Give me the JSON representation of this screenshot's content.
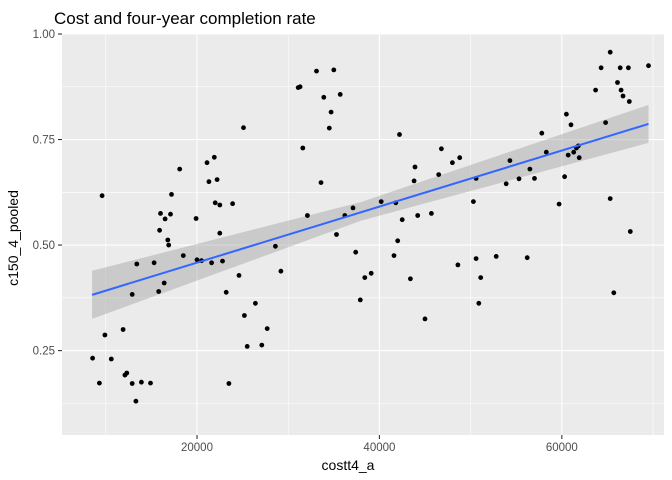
{
  "chart_data": {
    "type": "scatter",
    "title": "Cost and four-year completion rate",
    "xlabel": "costt4_a",
    "ylabel": "c150_4_pooled",
    "xlim": [
      5200,
      71200
    ],
    "ylim": [
      0.05,
      1.0
    ],
    "x_ticks": [
      20000,
      40000,
      60000
    ],
    "x_tick_labels": [
      "20000",
      "40000",
      "60000"
    ],
    "y_ticks": [
      0.25,
      0.5,
      0.75,
      1.0
    ],
    "y_tick_labels": [
      "0.25",
      "0.50",
      "0.75",
      "1.00"
    ],
    "grid": true,
    "background": "#ebebeb",
    "grid_major_color": "#ffffff",
    "point_color": "#000000",
    "smooth": {
      "method": "lm",
      "color": "#3366ff",
      "band_color": "#999999",
      "x": [
        8500,
        69500
      ],
      "y": [
        0.382,
        0.787
      ],
      "ci_lower": [
        0.325,
        0.742
      ],
      "ci_upper": [
        0.439,
        0.832
      ],
      "ci_mid": [
        38000,
        0.58,
        0.558,
        0.602
      ]
    },
    "points": [
      [
        8550,
        0.232
      ],
      [
        9300,
        0.173
      ],
      [
        9600,
        0.617
      ],
      [
        9900,
        0.287
      ],
      [
        10600,
        0.23
      ],
      [
        11900,
        0.3
      ],
      [
        12100,
        0.192
      ],
      [
        12300,
        0.197
      ],
      [
        12900,
        0.172
      ],
      [
        12900,
        0.383
      ],
      [
        13300,
        0.13
      ],
      [
        13400,
        0.455
      ],
      [
        13900,
        0.175
      ],
      [
        14900,
        0.173
      ],
      [
        15300,
        0.458
      ],
      [
        15800,
        0.39
      ],
      [
        15900,
        0.535
      ],
      [
        16000,
        0.575
      ],
      [
        16400,
        0.41
      ],
      [
        16500,
        0.562
      ],
      [
        16800,
        0.512
      ],
      [
        16900,
        0.5
      ],
      [
        17100,
        0.573
      ],
      [
        17200,
        0.62
      ],
      [
        18100,
        0.68
      ],
      [
        18500,
        0.475
      ],
      [
        19900,
        0.563
      ],
      [
        20000,
        0.465
      ],
      [
        20500,
        0.463
      ],
      [
        21100,
        0.695
      ],
      [
        21300,
        0.65
      ],
      [
        21600,
        0.458
      ],
      [
        21900,
        0.708
      ],
      [
        22000,
        0.6
      ],
      [
        22200,
        0.655
      ],
      [
        22500,
        0.528
      ],
      [
        22500,
        0.595
      ],
      [
        22800,
        0.462
      ],
      [
        23200,
        0.388
      ],
      [
        23500,
        0.172
      ],
      [
        23900,
        0.598
      ],
      [
        24600,
        0.428
      ],
      [
        25100,
        0.778
      ],
      [
        25200,
        0.333
      ],
      [
        25500,
        0.26
      ],
      [
        26400,
        0.362
      ],
      [
        27100,
        0.263
      ],
      [
        27700,
        0.302
      ],
      [
        28600,
        0.497
      ],
      [
        29200,
        0.438
      ],
      [
        31100,
        0.873
      ],
      [
        31300,
        0.875
      ],
      [
        31600,
        0.73
      ],
      [
        32100,
        0.57
      ],
      [
        33100,
        0.912
      ],
      [
        33600,
        0.648
      ],
      [
        33900,
        0.85
      ],
      [
        34500,
        0.777
      ],
      [
        34700,
        0.815
      ],
      [
        35000,
        0.915
      ],
      [
        35300,
        0.525
      ],
      [
        35700,
        0.857
      ],
      [
        36200,
        0.57
      ],
      [
        37100,
        0.588
      ],
      [
        37400,
        0.483
      ],
      [
        37900,
        0.37
      ],
      [
        38400,
        0.423
      ],
      [
        39100,
        0.433
      ],
      [
        40200,
        0.603
      ],
      [
        41600,
        0.475
      ],
      [
        41800,
        0.6
      ],
      [
        42000,
        0.51
      ],
      [
        42200,
        0.762
      ],
      [
        42500,
        0.56
      ],
      [
        43400,
        0.42
      ],
      [
        43800,
        0.652
      ],
      [
        43900,
        0.685
      ],
      [
        44200,
        0.57
      ],
      [
        45000,
        0.325
      ],
      [
        45700,
        0.575
      ],
      [
        46500,
        0.667
      ],
      [
        46800,
        0.728
      ],
      [
        48000,
        0.695
      ],
      [
        48600,
        0.453
      ],
      [
        48800,
        0.707
      ],
      [
        50300,
        0.603
      ],
      [
        50600,
        0.468
      ],
      [
        50600,
        0.658
      ],
      [
        50900,
        0.362
      ],
      [
        51100,
        0.423
      ],
      [
        52800,
        0.473
      ],
      [
        53900,
        0.645
      ],
      [
        54300,
        0.7
      ],
      [
        55300,
        0.657
      ],
      [
        56200,
        0.47
      ],
      [
        56500,
        0.68
      ],
      [
        57000,
        0.658
      ],
      [
        57800,
        0.765
      ],
      [
        58300,
        0.72
      ],
      [
        59700,
        0.597
      ],
      [
        60300,
        0.662
      ],
      [
        60500,
        0.81
      ],
      [
        60700,
        0.713
      ],
      [
        61000,
        0.785
      ],
      [
        61300,
        0.72
      ],
      [
        61600,
        0.73
      ],
      [
        61900,
        0.707
      ],
      [
        61800,
        0.735
      ],
      [
        63700,
        0.867
      ],
      [
        64300,
        0.92
      ],
      [
        64800,
        0.79
      ],
      [
        65300,
        0.957
      ],
      [
        65300,
        0.61
      ],
      [
        65700,
        0.387
      ],
      [
        66100,
        0.885
      ],
      [
        66400,
        0.92
      ],
      [
        66500,
        0.867
      ],
      [
        66700,
        0.853
      ],
      [
        67300,
        0.92
      ],
      [
        67400,
        0.84
      ],
      [
        67500,
        0.532
      ],
      [
        69500,
        0.925
      ]
    ]
  }
}
